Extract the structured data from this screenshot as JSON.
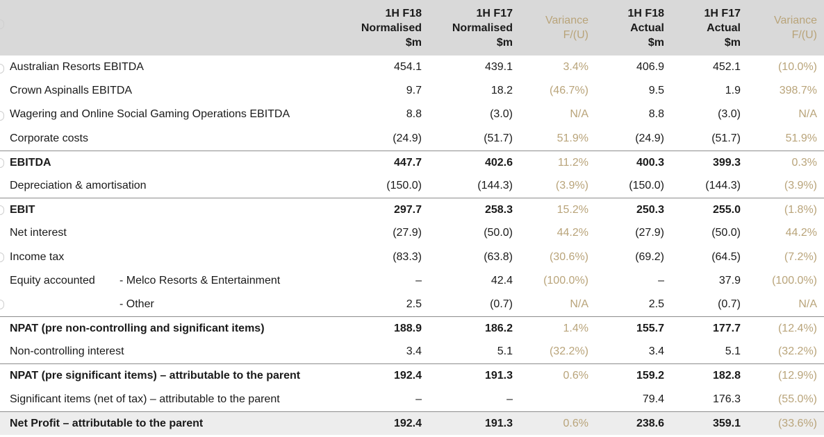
{
  "header": {
    "c1": [
      "1H F18",
      "Normalised",
      "$m"
    ],
    "c2": [
      "1H F17",
      "Normalised",
      "$m"
    ],
    "c3": [
      "Variance",
      "F/(U)"
    ],
    "c4": [
      "1H F18",
      "Actual",
      "$m"
    ],
    "c5": [
      "1H F17",
      "Actual",
      "$m"
    ],
    "c6": [
      "Variance",
      "F/(U)"
    ]
  },
  "rows": [
    {
      "label": "Australian Resorts EBITDA",
      "sub": "",
      "v": [
        "454.1",
        "439.1",
        "3.4%",
        "406.9",
        "452.1",
        "(10.0%)"
      ]
    },
    {
      "label": "Crown Aspinalls EBITDA",
      "sub": "",
      "v": [
        "9.7",
        "18.2",
        "(46.7%)",
        "9.5",
        "1.9",
        "398.7%"
      ]
    },
    {
      "label": "Wagering and Online Social Gaming Operations EBITDA",
      "sub": "",
      "v": [
        "8.8",
        "(3.0)",
        "N/A",
        "8.8",
        "(3.0)",
        "N/A"
      ]
    },
    {
      "label": "Corporate costs",
      "sub": "",
      "v": [
        "(24.9)",
        "(51.7)",
        "51.9%",
        "(24.9)",
        "(51.7)",
        "51.9%"
      ]
    },
    {
      "label": "EBITDA",
      "sub": "",
      "v": [
        "447.7",
        "402.6",
        "11.2%",
        "400.3",
        "399.3",
        "0.3%"
      ]
    },
    {
      "label": "Depreciation & amortisation",
      "sub": "",
      "v": [
        "(150.0)",
        "(144.3)",
        "(3.9%)",
        "(150.0)",
        "(144.3)",
        "(3.9%)"
      ]
    },
    {
      "label": "EBIT",
      "sub": "",
      "v": [
        "297.7",
        "258.3",
        "15.2%",
        "250.3",
        "255.0",
        "(1.8%)"
      ]
    },
    {
      "label": "Net interest",
      "sub": "",
      "v": [
        "(27.9)",
        "(50.0)",
        "44.2%",
        "(27.9)",
        "(50.0)",
        "44.2%"
      ]
    },
    {
      "label": "Income tax",
      "sub": "",
      "v": [
        "(83.3)",
        "(63.8)",
        "(30.6%)",
        "(69.2)",
        "(64.5)",
        "(7.2%)"
      ]
    },
    {
      "label": "Equity accounted",
      "sub": "- Melco Resorts & Entertainment",
      "v": [
        "–",
        "42.4",
        "(100.0%)",
        "–",
        "37.9",
        "(100.0%)"
      ]
    },
    {
      "label": "",
      "sub": "- Other",
      "v": [
        "2.5",
        "(0.7)",
        "N/A",
        "2.5",
        "(0.7)",
        "N/A"
      ]
    },
    {
      "label": "NPAT (pre non-controlling and significant items)",
      "sub": "",
      "v": [
        "188.9",
        "186.2",
        "1.4%",
        "155.7",
        "177.7",
        "(12.4%)"
      ]
    },
    {
      "label": "Non-controlling interest",
      "sub": "",
      "v": [
        "3.4",
        "5.1",
        "(32.2%)",
        "3.4",
        "5.1",
        "(32.2%)"
      ]
    },
    {
      "label": "NPAT (pre significant items) – attributable to the parent",
      "sub": "",
      "v": [
        "192.4",
        "191.3",
        "0.6%",
        "159.2",
        "182.8",
        "(12.9%)"
      ]
    },
    {
      "label": "Significant items (net of tax) – attributable to the parent",
      "sub": "",
      "v": [
        "–",
        "–",
        "",
        "79.4",
        "176.3",
        "(55.0%)"
      ]
    },
    {
      "label": "Net Profit – attributable to the parent",
      "sub": "",
      "v": [
        "192.4",
        "191.3",
        "0.6%",
        "238.6",
        "359.1",
        "(33.6%)"
      ]
    }
  ]
}
